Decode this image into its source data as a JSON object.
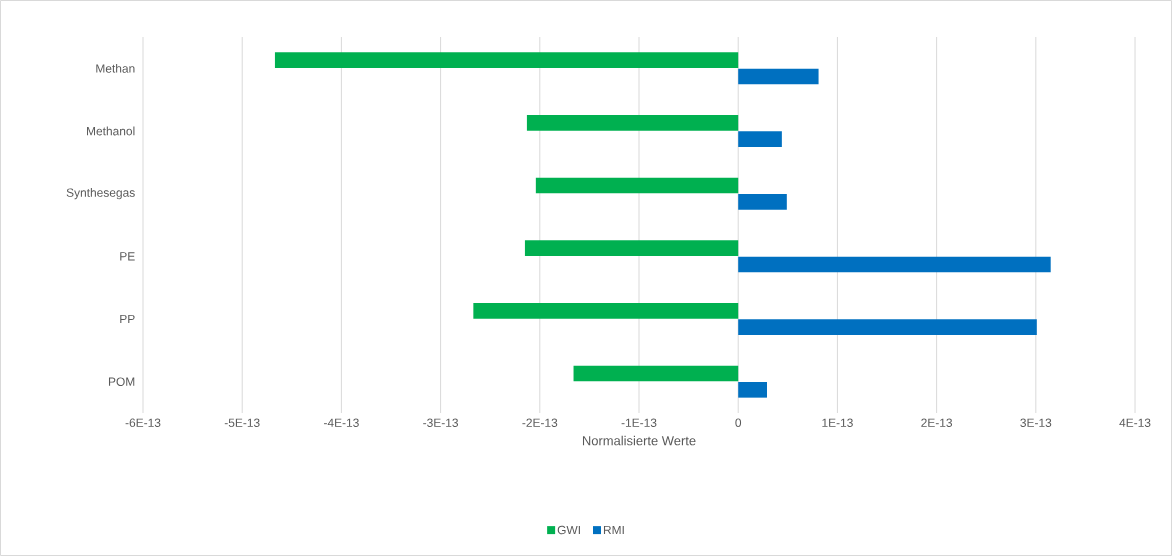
{
  "chart_data": {
    "type": "bar",
    "orientation": "horizontal",
    "xlabel": "Normalisierte Werte",
    "categories": [
      "Methan",
      "Methanol",
      "Synthesegas",
      "PE",
      "PP",
      "POM"
    ],
    "series": [
      {
        "name": "GWI",
        "color": "#00b050",
        "values": [
          -4.67e-13,
          -2.13e-13,
          -2.04e-13,
          -2.15e-13,
          -2.67e-13,
          -1.66e-13
        ]
      },
      {
        "name": "RMI",
        "color": "#0070c0",
        "values": [
          8.1e-14,
          4.4e-14,
          4.9e-14,
          3.15e-13,
          3.01e-13,
          2.9e-14
        ]
      }
    ],
    "xlim": [
      -6e-13,
      4e-13
    ],
    "xticks": [
      {
        "value": -6e-13,
        "label": "-6E-13"
      },
      {
        "value": -5e-13,
        "label": "-5E-13"
      },
      {
        "value": -4e-13,
        "label": "-4E-13"
      },
      {
        "value": -3e-13,
        "label": "-3E-13"
      },
      {
        "value": -2e-13,
        "label": "-2E-13"
      },
      {
        "value": -1e-13,
        "label": "-1E-13"
      },
      {
        "value": 0,
        "label": "0"
      },
      {
        "value": 1e-13,
        "label": "1E-13"
      },
      {
        "value": 2e-13,
        "label": "2E-13"
      },
      {
        "value": 3e-13,
        "label": "3E-13"
      },
      {
        "value": 4e-13,
        "label": "4E-13"
      }
    ],
    "grid": "x",
    "legend": "bottom"
  }
}
